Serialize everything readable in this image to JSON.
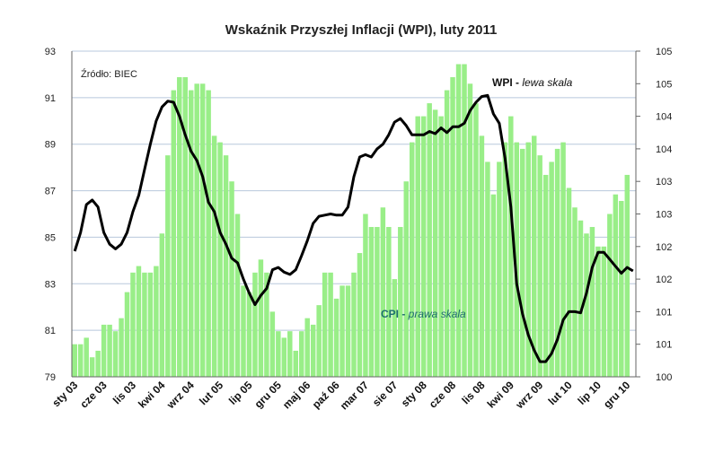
{
  "chart_data": {
    "type": "bar+line",
    "title": "Wskaźnik Przyszłej Inflacji (WPI), luty 2011",
    "source_note": "Źródło: BIEC",
    "left_axis": {
      "ylim": [
        79,
        93
      ],
      "ticks": [
        "79",
        "81",
        "83",
        "85",
        "87",
        "89",
        "91",
        "93"
      ]
    },
    "right_axis": {
      "ylim": [
        100,
        105
      ],
      "ticks": [
        "100",
        "101",
        "101",
        "102",
        "102",
        "103",
        "103",
        "104",
        "104",
        "105",
        "105"
      ]
    },
    "x_tick_labels": [
      "sty 03",
      "cze 03",
      "lis 03",
      "kwi 04",
      "wrz 04",
      "lut 05",
      "lip 05",
      "gru 05",
      "maj 06",
      "paź 06",
      "mar 07",
      "sie 07",
      "sty 08",
      "cze 08",
      "lis 08",
      "kwi 09",
      "wrz 09",
      "lut 10",
      "lip 10",
      "gru 10"
    ],
    "x_tick_step_months": 5,
    "grid": true,
    "series": [
      {
        "name": "CPI",
        "legend_bold": "CPI - ",
        "legend_italic": "prawa skala",
        "type": "bar",
        "axis": "right",
        "color": "#99ee88",
        "values": [
          100.5,
          100.5,
          100.6,
          100.3,
          100.4,
          100.8,
          100.8,
          100.7,
          100.9,
          101.3,
          101.6,
          101.7,
          101.6,
          101.6,
          101.7,
          102.2,
          103.4,
          104.4,
          104.6,
          104.6,
          104.4,
          104.5,
          104.5,
          104.4,
          103.7,
          103.6,
          103.4,
          103.0,
          102.5,
          101.4,
          101.3,
          101.6,
          101.8,
          101.6,
          101.0,
          100.7,
          100.6,
          100.7,
          100.4,
          100.7,
          100.9,
          100.8,
          101.1,
          101.6,
          101.6,
          101.2,
          101.4,
          101.4,
          101.6,
          101.9,
          102.5,
          102.3,
          102.3,
          102.6,
          102.3,
          101.5,
          102.3,
          103.0,
          103.6,
          104.0,
          104.0,
          104.2,
          104.1,
          104.0,
          104.4,
          104.6,
          104.8,
          104.8,
          104.5,
          104.2,
          103.7,
          103.3,
          102.8,
          103.3,
          103.6,
          104.0,
          103.6,
          103.5,
          103.6,
          103.7,
          103.4,
          103.1,
          103.3,
          103.5,
          103.6,
          102.9,
          102.6,
          102.4,
          102.2,
          102.3,
          102.0,
          102.0,
          102.5,
          102.8,
          102.7,
          103.1
        ]
      },
      {
        "name": "WPI",
        "legend_bold": "WPI - ",
        "legend_italic": "lewa skala",
        "type": "line",
        "axis": "left",
        "color": "#000000",
        "values": [
          84.4,
          85.2,
          86.4,
          86.6,
          86.3,
          85.2,
          84.7,
          84.5,
          84.7,
          85.2,
          86.1,
          86.8,
          87.9,
          89.0,
          90.0,
          90.6,
          90.85,
          90.8,
          90.2,
          89.4,
          88.7,
          88.3,
          87.6,
          86.5,
          86.1,
          85.2,
          84.7,
          84.1,
          83.9,
          83.2,
          82.6,
          82.1,
          82.5,
          82.8,
          83.6,
          83.7,
          83.5,
          83.4,
          83.6,
          84.2,
          84.85,
          85.6,
          85.9,
          85.95,
          86.0,
          85.95,
          85.95,
          86.3,
          87.6,
          88.45,
          88.55,
          88.45,
          88.8,
          89.0,
          89.4,
          89.95,
          90.1,
          89.8,
          89.4,
          89.4,
          89.4,
          89.55,
          89.45,
          89.7,
          89.5,
          89.75,
          89.75,
          89.9,
          90.45,
          90.8,
          91.05,
          91.1,
          90.3,
          89.9,
          88.4,
          86.3,
          83.0,
          81.7,
          80.8,
          80.15,
          79.65,
          79.65,
          80.0,
          80.6,
          81.45,
          81.8,
          81.8,
          81.75,
          82.6,
          83.7,
          84.35,
          84.35,
          84.05,
          83.75,
          83.45,
          83.7,
          83.55
        ]
      }
    ]
  }
}
